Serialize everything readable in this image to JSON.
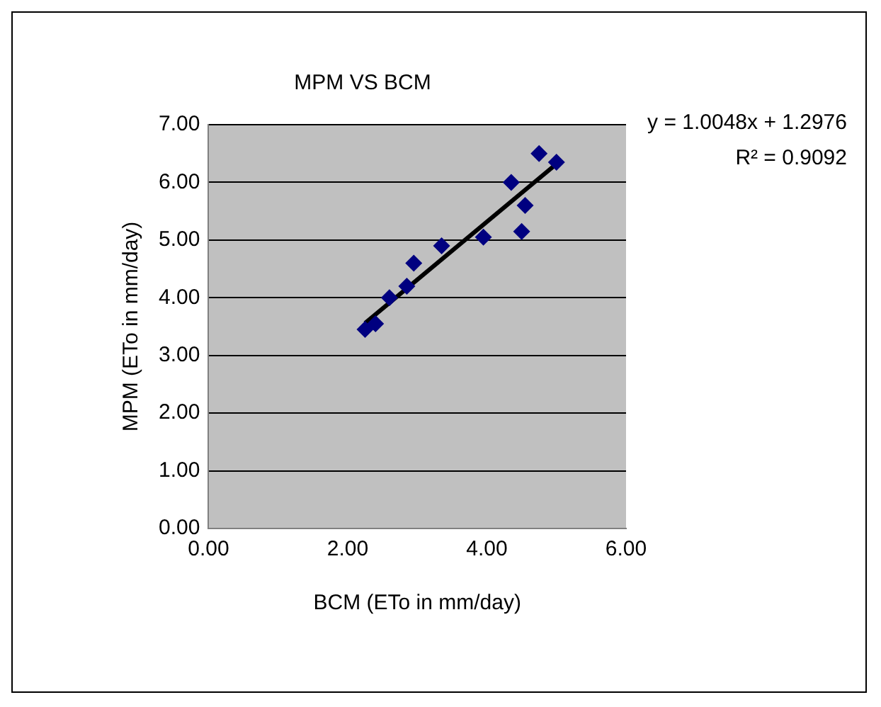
{
  "chart_data": {
    "type": "scatter",
    "title": "MPM VS BCM",
    "xlabel": "BCM (ETo in mm/day)",
    "ylabel": "MPM (ETo in mm/day)",
    "annotations": [
      "y = 1.0048x + 1.2976",
      "R² = 0.9092"
    ],
    "series": [
      {
        "color": "#000080",
        "marker": "diamond",
        "x": [
          2.25,
          2.4,
          2.6,
          2.85,
          2.95,
          3.35,
          3.95,
          4.35,
          4.5,
          4.55,
          4.75,
          5.0
        ],
        "values": [
          3.45,
          3.55,
          4.0,
          4.2,
          4.6,
          4.9,
          5.05,
          6.0,
          5.15,
          5.6,
          6.5,
          6.35
        ]
      },
      {
        "type": "line",
        "color": "#000000",
        "marker": "none",
        "x": [
          2.25,
          5.0
        ],
        "values": [
          3.56,
          6.32
        ]
      }
    ],
    "xlim": [
      0,
      6
    ],
    "xticks": [
      {
        "value": 0,
        "label": "0.00"
      },
      {
        "value": 2,
        "label": "2.00"
      },
      {
        "value": 4,
        "label": "4.00"
      },
      {
        "value": 6,
        "label": "6.00"
      }
    ],
    "ylim": [
      0,
      7
    ],
    "yticks": [
      {
        "value": 0,
        "label": "0.00"
      },
      {
        "value": 1,
        "label": "1.00"
      },
      {
        "value": 2,
        "label": "2.00"
      },
      {
        "value": 3,
        "label": "3.00"
      },
      {
        "value": 4,
        "label": "4.00"
      },
      {
        "value": 5,
        "label": "5.00"
      },
      {
        "value": 6,
        "label": "6.00"
      },
      {
        "value": 7,
        "label": "7.00"
      }
    ],
    "grid": "y",
    "legend": false
  }
}
